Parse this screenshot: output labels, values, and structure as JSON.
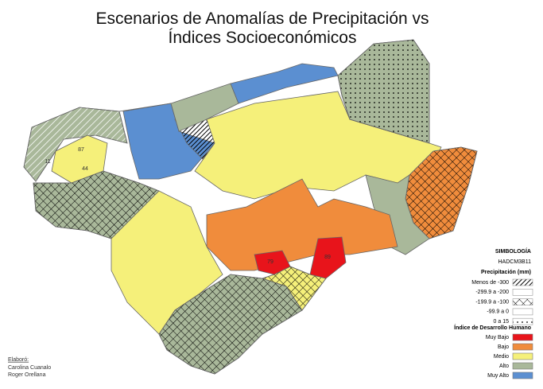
{
  "title": {
    "line1": "Escenarios de Anomalías de Precipitación vs",
    "line2": "Índices Socioeconómicos"
  },
  "legend": {
    "heading": "SIMBOLOGÍA",
    "model": "HADCM3B11",
    "precip_title": "Precipitación (mm)",
    "precip_items": [
      "Menos de -300",
      "-299.9 a -200",
      "-199.9 a -100",
      "-99.9 a 0",
      "0 a 15"
    ],
    "idh_title": "Índice de Desarrollo Humano",
    "idh_items": [
      {
        "label": "Muy Bajo",
        "color": "#e8141b"
      },
      {
        "label": "Bajo",
        "color": "#f08c3c"
      },
      {
        "label": "Medio",
        "color": "#f5f07a"
      },
      {
        "label": "Alto",
        "color": "#a9b89a"
      },
      {
        "label": "Muy Alto",
        "color": "#5b8fd1"
      }
    ]
  },
  "credits": {
    "label": "Elaboró:",
    "names": [
      "Carolina Cuanalo",
      "Roger Orellana"
    ]
  },
  "map_labels": [
    "87",
    "44",
    "11",
    "79",
    "89"
  ]
}
